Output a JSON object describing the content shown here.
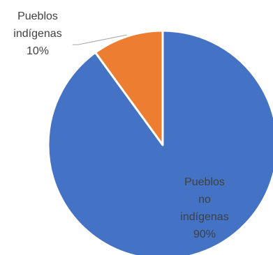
{
  "chart_data": {
    "type": "pie",
    "title": "",
    "categories": [
      "Pueblos indígenas",
      "Pueblos no indígenas"
    ],
    "values": [
      10,
      90
    ],
    "colors": [
      "#ED7D31",
      "#4472C4"
    ],
    "labels": [
      {
        "name_lines": [
          "Pueblos",
          "indígenas"
        ],
        "percent": "10%"
      },
      {
        "name_lines": [
          "Pueblos",
          "no",
          "indígenas"
        ],
        "percent": "90%"
      }
    ],
    "leader_line_color": "#A6A6A6",
    "legend": "none"
  }
}
